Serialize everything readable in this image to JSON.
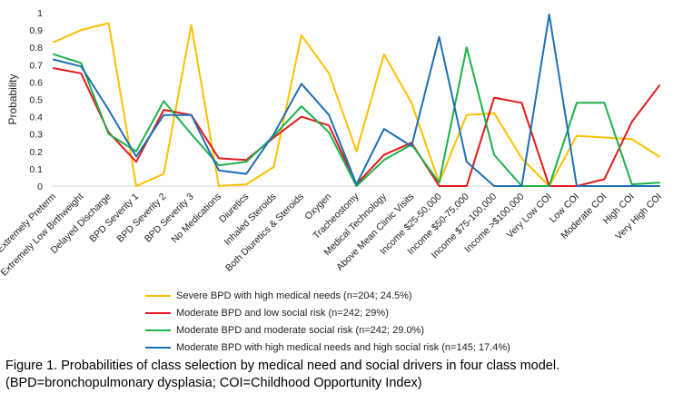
{
  "chart_data": {
    "type": "line",
    "ylabel": "Probability",
    "xlabel": "",
    "ylim": [
      0,
      1
    ],
    "yticks": [
      "0",
      "0.1",
      "0.2",
      "0.3",
      "0.4",
      "0.5",
      "0.6",
      "0.7",
      "0.8",
      "0.9",
      "1"
    ],
    "grid": false,
    "legend_position": "bottom",
    "categories": [
      "Extremely Preterm",
      "Extremely Low Birthweight",
      "Delayed Discharge",
      "BPD Severity 1",
      "BPD Severity 2",
      "BPD Severity 3",
      "No Medications",
      "Diuretics",
      "Inhaled Steroids",
      "Both Diuretics & Steroids",
      "Oxygen",
      "Tracheostomy",
      "Medical Technology",
      "Above Mean Clinic Visits",
      "Income $25-50,000",
      "Income $50-75,000",
      "Income $75-100,000",
      "Income >$100,000",
      "Very Low COI",
      "Low COI",
      "Moderate COI",
      "High COI",
      "Very High COI"
    ],
    "series": [
      {
        "name": "Severe BPD with high medical needs (n=204; 24.5%)",
        "color": "#FFC000",
        "values": [
          0.83,
          0.9,
          0.94,
          0.0,
          0.07,
          0.93,
          0.0,
          0.01,
          0.11,
          0.87,
          0.65,
          0.2,
          0.76,
          0.48,
          0.02,
          0.41,
          0.42,
          0.16,
          0.0,
          0.29,
          0.28,
          0.27,
          0.17
        ]
      },
      {
        "name": "Moderate BPD and low social risk (n=242; 29%)",
        "color": "#E31A1C",
        "values": [
          0.68,
          0.65,
          0.31,
          0.14,
          0.44,
          0.41,
          0.16,
          0.15,
          0.28,
          0.4,
          0.35,
          0.01,
          0.18,
          0.25,
          0.0,
          0.0,
          0.51,
          0.48,
          0.0,
          0.0,
          0.04,
          0.37,
          0.58
        ]
      },
      {
        "name": "Moderate BPD and moderate social risk (n=242; 29.0%)",
        "color": "#1DB14B",
        "values": [
          0.76,
          0.71,
          0.3,
          0.2,
          0.49,
          0.3,
          0.12,
          0.14,
          0.29,
          0.46,
          0.31,
          0.0,
          0.15,
          0.24,
          0.02,
          0.8,
          0.18,
          0.0,
          0.0,
          0.48,
          0.48,
          0.01,
          0.02
        ]
      },
      {
        "name": "Moderate BPD with high medical needs and high social risk (n=145; 17.4%)",
        "color": "#1F6FB4",
        "values": [
          0.73,
          0.69,
          0.44,
          0.17,
          0.41,
          0.41,
          0.09,
          0.07,
          0.3,
          0.59,
          0.41,
          0.01,
          0.33,
          0.23,
          0.86,
          0.14,
          0.0,
          0.0,
          0.99,
          0.0,
          0.0,
          0.0,
          0.0
        ]
      }
    ]
  },
  "caption": {
    "line1": "Figure 1. Probabilities of class selection by medical need and social drivers in four class model.",
    "line2": "(BPD=bronchopulmonary dysplasia; COI=Childhood Opportunity Index)"
  }
}
